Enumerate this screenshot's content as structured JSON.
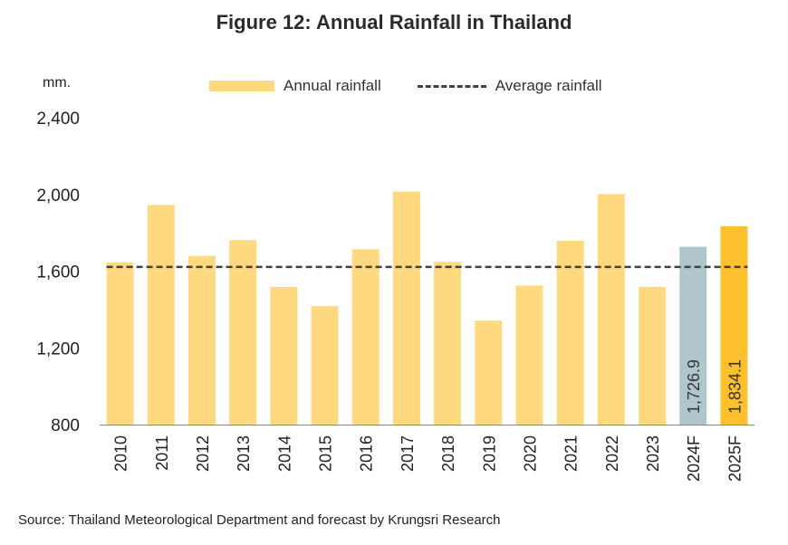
{
  "title": "Figure 12: Annual Rainfall in Thailand",
  "source": "Source: Thailand Meteorological Department and forecast by Krungsri Research",
  "chart_data": {
    "type": "bar",
    "title": "Figure 12: Annual Rainfall in Thailand",
    "ylabel": "mm.",
    "xlabel": "",
    "ylim": [
      800,
      2400
    ],
    "yticks": [
      800,
      1200,
      1600,
      2000,
      2400
    ],
    "ytick_labels": [
      "800",
      "1,200",
      "1,600",
      "2,000",
      "2,400"
    ],
    "categories": [
      "2010",
      "2011",
      "2012",
      "2013",
      "2014",
      "2015",
      "2016",
      "2017",
      "2018",
      "2019",
      "2020",
      "2021",
      "2022",
      "2023",
      "2024F",
      "2025F"
    ],
    "series": [
      {
        "name": "Annual rainfall",
        "values": [
          1645,
          1945,
          1680,
          1762,
          1518,
          1418,
          1714,
          2015,
          1648,
          1342,
          1525,
          1758,
          2002,
          1518,
          1726.9,
          1834.1
        ],
        "colors": [
          "#FFD980",
          "#FFD980",
          "#FFD980",
          "#FFD980",
          "#FFD980",
          "#FFD980",
          "#FFD980",
          "#FFD980",
          "#FFD980",
          "#FFD980",
          "#FFD980",
          "#FFD980",
          "#FFD980",
          "#FFD980",
          "#AFC7CC",
          "#FFC02E"
        ]
      }
    ],
    "average": {
      "name": "Average rainfall",
      "value": 1622,
      "color": "#404040"
    },
    "data_labels": [
      {
        "index": 14,
        "text": "1,726.9"
      },
      {
        "index": 15,
        "text": "1,834.1"
      }
    ],
    "legend_position": "top",
    "grid": false
  }
}
